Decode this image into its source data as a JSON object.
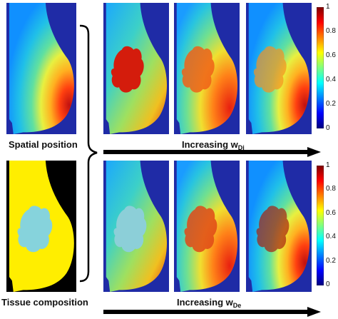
{
  "labels": {
    "spatial": "Spatial position",
    "tissue": "Tissue composition"
  },
  "arrows": {
    "top": {
      "text": "Increasing w",
      "sub": "Di"
    },
    "bottom": {
      "text": "Increasing w",
      "sub": "De"
    }
  },
  "colorbar": {
    "ticks": [
      "1",
      "0.8",
      "0.6",
      "0.4",
      "0.2",
      "0"
    ]
  },
  "colors": {
    "jet_bg": "#1f2ba6",
    "tissue_yellow": "#ffee00",
    "tissue_cyan": "#86d3dc"
  }
}
